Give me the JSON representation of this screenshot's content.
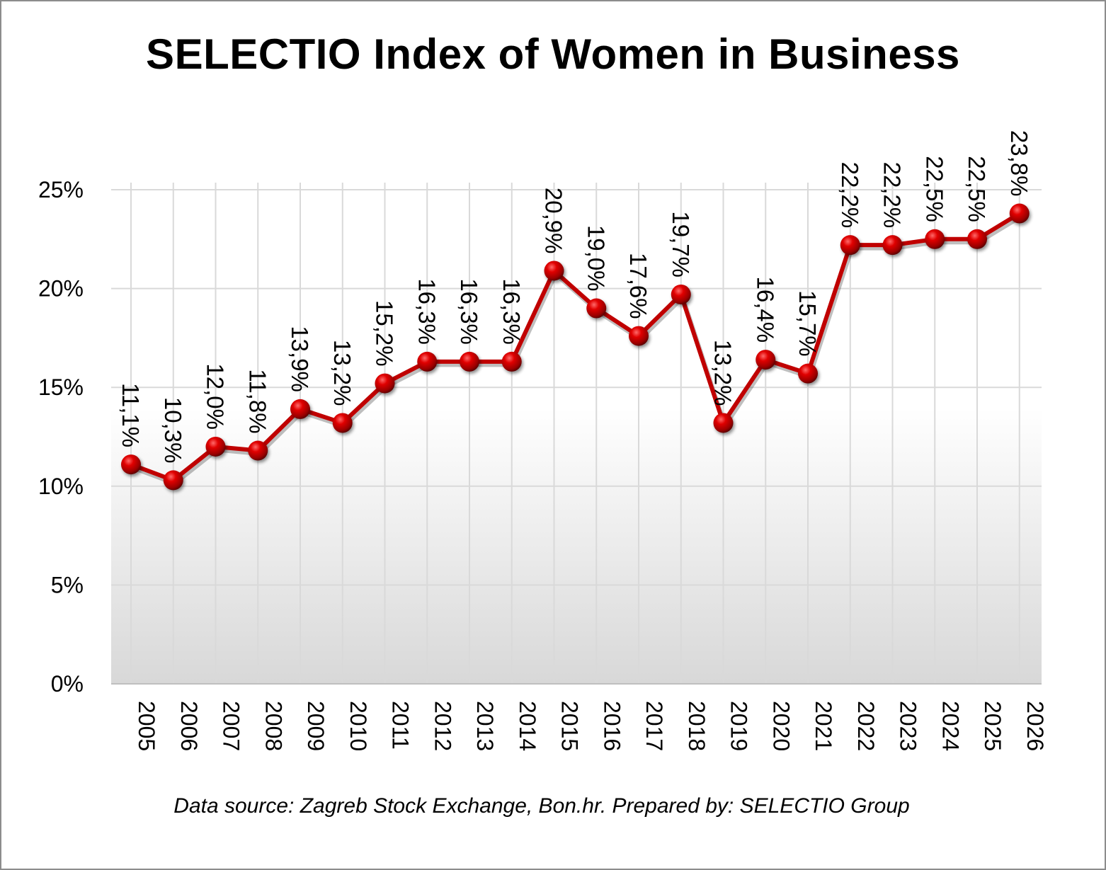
{
  "chart_data": {
    "type": "line",
    "title": "SELECTIO Index of Women in Business",
    "xlabel": "",
    "ylabel": "",
    "categories": [
      "2005",
      "2006",
      "2007",
      "2008",
      "2009",
      "2010",
      "2011",
      "2012",
      "2013",
      "2014",
      "2015",
      "2016",
      "2017",
      "2018",
      "2019",
      "2020",
      "2021",
      "2022",
      "2023",
      "2024",
      "2025",
      "2026"
    ],
    "series": [
      {
        "name": "SELECTIO Index",
        "values": [
          11.1,
          10.3,
          12.0,
          11.8,
          13.9,
          13.2,
          15.2,
          16.3,
          16.3,
          16.3,
          20.9,
          19.0,
          17.6,
          19.7,
          13.2,
          16.4,
          15.7,
          22.2,
          22.2,
          22.5,
          22.5,
          23.8
        ],
        "labels": [
          "11,1%",
          "10,3%",
          "12,0%",
          "11,8%",
          "13,9%",
          "13,2%",
          "15,2%",
          "16,3%",
          "16,3%",
          "16,3%",
          "20,9%",
          "19,0%",
          "17,6%",
          "19,7%",
          "13,2%",
          "16,4%",
          "15,7%",
          "22,2%",
          "22,2%",
          "22,5%",
          "22,5%",
          "23,8%"
        ]
      }
    ],
    "ylim": [
      0,
      25
    ],
    "yticks": [
      0,
      5,
      10,
      15,
      20,
      25
    ],
    "ytick_labels": [
      "0%",
      "5%",
      "10%",
      "15%",
      "20%",
      "25%"
    ],
    "grid": true,
    "legend": "none",
    "colors": {
      "line": "#c00000",
      "marker": "#c00000",
      "grid": "#d9d9d9"
    }
  },
  "footnote": "Data source: Zagreb Stock Exchange, Bon.hr. Prepared by: SELECTIO Group"
}
